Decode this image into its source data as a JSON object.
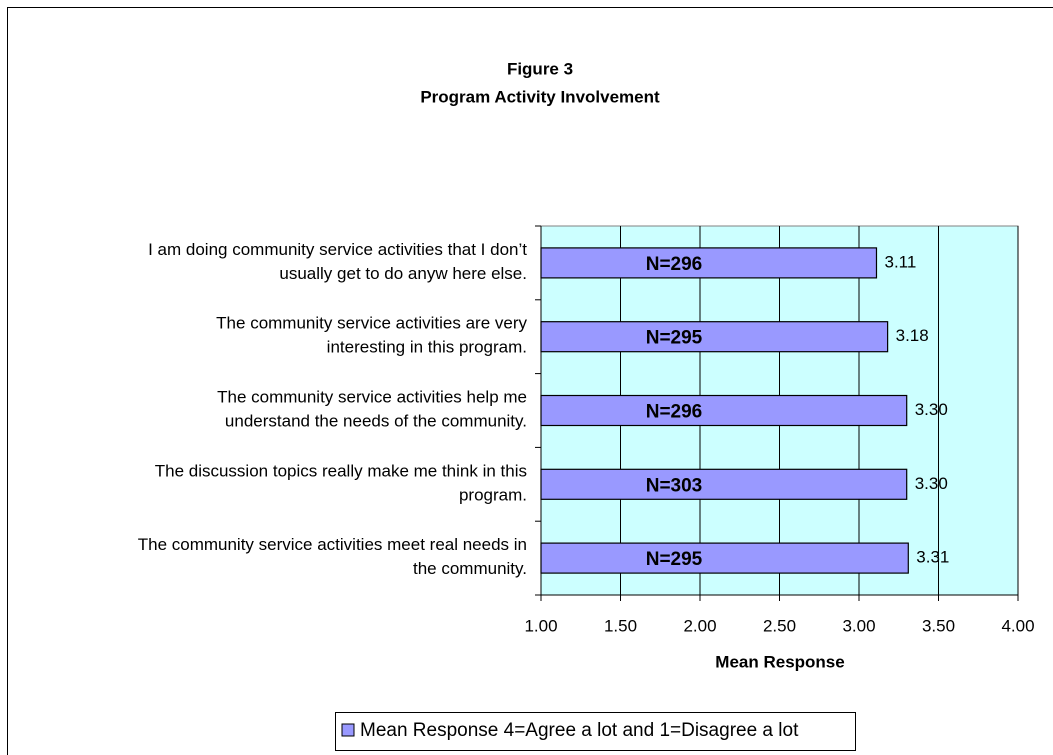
{
  "chart_data": {
    "type": "bar",
    "orientation": "horizontal",
    "title": "Figure 3",
    "subtitle": "Program Activity Involvement",
    "categories": [
      "I am doing community service activities that I don’t\nusually get to do anyw here else.",
      "The community service activities are very\ninteresting in this program.",
      "The community service activities help me\nunderstand the needs of the community.",
      "The discussion topics really make me think in this\nprogram.",
      "The community service activities meet real needs in\nthe community."
    ],
    "series": [
      {
        "name": "Mean Response 4=Agree a lot and 1=Disagree a lot",
        "color": "#9999ff",
        "values": [
          3.11,
          3.18,
          3.3,
          3.3,
          3.31
        ],
        "value_labels": [
          "3.11",
          "3.18",
          "3.30",
          "3.30",
          "3.31"
        ]
      }
    ],
    "annotations": [
      "N=296",
      "N=295",
      "N=296",
      "N=303",
      "N=295"
    ],
    "xlabel": "Mean Response",
    "xlim": [
      1,
      4
    ],
    "xticks": [
      {
        "value": 1,
        "label": "1.00"
      },
      {
        "value": 1.5,
        "label": "1.50"
      },
      {
        "value": 2,
        "label": "2.00"
      },
      {
        "value": 2.5,
        "label": "2.50"
      },
      {
        "value": 3,
        "label": "3.00"
      },
      {
        "value": 3.5,
        "label": "3.50"
      },
      {
        "value": 4,
        "label": "4.00"
      }
    ],
    "grid": true,
    "plot_background": "#ccffff",
    "legend": "bottom"
  }
}
